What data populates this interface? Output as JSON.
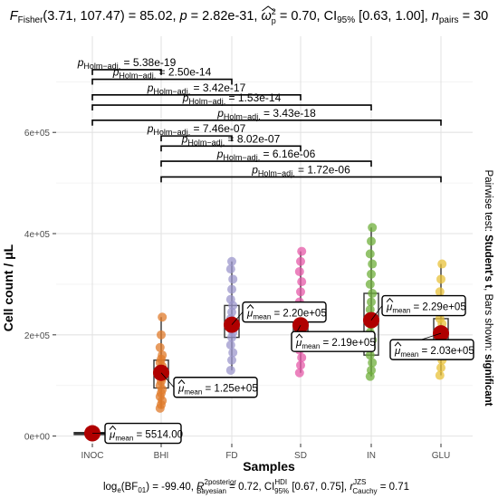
{
  "chart_data": {
    "type": "scatter",
    "title": "F_Fisher(3.71, 107.47) = 85.02, p = 2.82e-31, ω̂²p = 0.70, CI95% [0.63, 1.00], n_pairs = 30",
    "title_parts": {
      "f_sym": "F",
      "f_sub": "Fisher",
      "f_rest": "(3.71, 107.47) = 85.02, ",
      "p_sym": "p",
      "p_rest": " = 2.82e-31, ",
      "omega_sym": "ω",
      "omega_sup": "2",
      "omega_sub": "p",
      "omega_rest": " = 0.70, CI",
      "ci_sub": "95%",
      "ci_rest": " [0.63, 1.00], ",
      "n_sym": "n",
      "n_sub": "pairs",
      "n_rest": " = 30"
    },
    "xlabel": "Samples",
    "ylabel": "Cell count / μL",
    "categories": [
      "INOC",
      "BHI",
      "FD",
      "SD",
      "IN",
      "GLU"
    ],
    "yticks": [
      0,
      200000,
      400000,
      600000
    ],
    "ytick_labels": [
      "0e+00",
      "2e+05",
      "4e+05",
      "6e+05"
    ],
    "ylim": [
      -15000,
      790000
    ],
    "grid": true,
    "colors": [
      "#8B0000",
      "#E07B2B",
      "#9C97CC",
      "#E55AA8",
      "#6FAF3B",
      "#E8C23A"
    ],
    "mean_color": "#B00000",
    "means": [
      5514,
      125000,
      220000,
      219000,
      229000,
      203000
    ],
    "mean_label_prefix": "μ",
    "mean_label_sub": "mean",
    "mean_labels": [
      "5514.00",
      "1.25e+05",
      "2.20e+05",
      "2.19e+05",
      "2.29e+05",
      "2.03e+05"
    ],
    "boxes": [
      {
        "q1": 3000,
        "median": 5000,
        "q3": 7000,
        "min": 2000,
        "max": 9000
      },
      {
        "q1": 95000,
        "median": 120000,
        "q3": 150000,
        "min": 55000,
        "max": 235000
      },
      {
        "q1": 195000,
        "median": 220000,
        "q3": 258000,
        "min": 130000,
        "max": 345000
      },
      {
        "q1": 185000,
        "median": 215000,
        "q3": 250000,
        "min": 125000,
        "max": 365000
      },
      {
        "q1": 160000,
        "median": 225000,
        "q3": 282000,
        "min": 118000,
        "max": 412000
      },
      {
        "q1": 175000,
        "median": 200000,
        "q3": 232000,
        "min": 120000,
        "max": 340000
      }
    ],
    "points": [
      [
        3000,
        4000,
        5000,
        5500,
        6000,
        7000,
        8000
      ],
      [
        55000,
        62000,
        70000,
        78000,
        85000,
        92000,
        100000,
        108000,
        115000,
        122000,
        130000,
        138000,
        145000,
        152000,
        160000,
        175000,
        200000,
        235000
      ],
      [
        130000,
        150000,
        165000,
        180000,
        195000,
        205000,
        212000,
        218000,
        225000,
        232000,
        245000,
        258000,
        270000,
        290000,
        310000,
        330000,
        345000
      ],
      [
        125000,
        140000,
        155000,
        170000,
        185000,
        195000,
        205000,
        212000,
        220000,
        228000,
        238000,
        250000,
        265000,
        285000,
        305000,
        325000,
        345000,
        365000
      ],
      [
        118000,
        130000,
        145000,
        160000,
        175000,
        190000,
        205000,
        220000,
        235000,
        250000,
        265000,
        282000,
        300000,
        320000,
        340000,
        360000,
        385000,
        412000
      ],
      [
        120000,
        135000,
        150000,
        165000,
        178000,
        190000,
        200000,
        210000,
        222000,
        232000,
        245000,
        262000,
        285000,
        310000,
        340000
      ]
    ],
    "pairwise": [
      {
        "from": 0,
        "to": 1,
        "y": 724000,
        "label": "5.38e-19"
      },
      {
        "from": 0,
        "to": 2,
        "y": 705000,
        "label": "2.50e-14"
      },
      {
        "from": 0,
        "to": 3,
        "y": 674000,
        "label": "3.42e-17"
      },
      {
        "from": 0,
        "to": 4,
        "y": 654000,
        "label": "1.53e-14"
      },
      {
        "from": 0,
        "to": 5,
        "y": 624000,
        "label": "3.43e-18"
      },
      {
        "from": 1,
        "to": 2,
        "y": 593000,
        "label": "7.46e-07"
      },
      {
        "from": 1,
        "to": 3,
        "y": 573000,
        "label": "8.02e-07"
      },
      {
        "from": 1,
        "to": 4,
        "y": 543000,
        "label": "6.16e-06"
      },
      {
        "from": 1,
        "to": 5,
        "y": 512000,
        "label": "1.72e-06"
      }
    ],
    "pair_label_prefix": "p",
    "pair_label_sub": "Holm−adj.",
    "pair_label_eq": " = ",
    "right_caption_parts": {
      "pre": "Pairwise test: ",
      "bold": "Student's t",
      "mid": ", Bars shown: ",
      "bold2": "significant"
    },
    "bottom_caption": "log_e(BF01) = -99.40, R̂²posterior Bayesian = 0.72, CI HDI 95% [0.67, 0.75], r JZS Cauchy = 0.71",
    "bottom_caption_parts": {
      "log": "log",
      "log_sub": "e",
      "bf": "(BF",
      "bf_sub": "01",
      "bf_rest": ") = -99.40, ",
      "r_sym": "R",
      "r_sup": "2",
      "r_sup2": "posterior",
      "r_sub": "Bayesian",
      "r_rest": " = 0.72, CI",
      "ci_sup": "HDI",
      "ci_sub": "95%",
      "ci_rest": " [0.67, 0.75], ",
      "rc_sym": "r",
      "rc_sup": "JZS",
      "rc_sub": "Cauchy",
      "rc_rest": " = 0.71"
    }
  }
}
